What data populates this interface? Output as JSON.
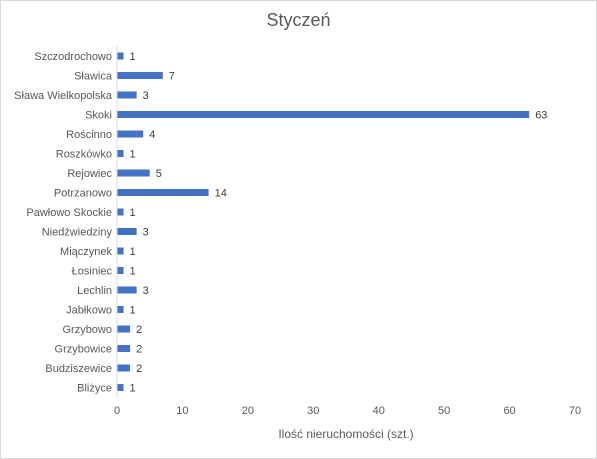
{
  "chart_data": {
    "type": "bar",
    "orientation": "horizontal",
    "title": "Styczeń",
    "xlabel": "Ilość nieruchomości (szt.)",
    "ylabel": "",
    "xlim": [
      0,
      70
    ],
    "xticks": [
      0,
      10,
      20,
      30,
      40,
      50,
      60,
      70
    ],
    "grid": false,
    "legend": "none",
    "bar_color": "#4472c4",
    "categories": [
      "Szczodrochowo",
      "Sławica",
      "Sława Wielkopolska",
      "Skoki",
      "Rościnno",
      "Roszkówko",
      "Rejowiec",
      "Potrzanowo",
      "Pawłowo Skockie",
      "Niedźwiedziny",
      "Miączynek",
      "Łosiniec",
      "Lechlin",
      "Jabłkowo",
      "Grzybowo",
      "Grzybowice",
      "Budziszewice",
      "Bliżyce"
    ],
    "values": [
      1,
      7,
      3,
      63,
      4,
      1,
      5,
      14,
      1,
      3,
      1,
      1,
      3,
      1,
      2,
      2,
      2,
      1
    ]
  }
}
